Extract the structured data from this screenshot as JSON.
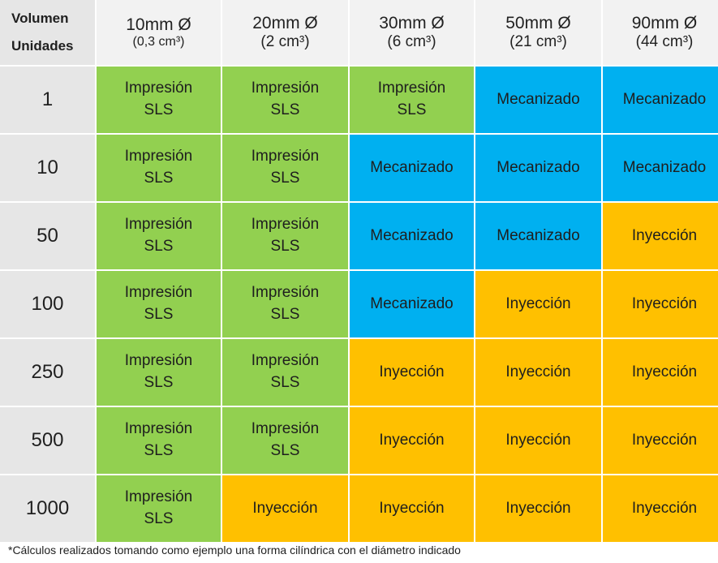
{
  "header": {
    "corner_line1": "Volumen",
    "corner_line2": "Unidades",
    "columns": [
      {
        "size": "10mm Ø",
        "volume": "(0,3 cm³)"
      },
      {
        "size": "20mm Ø",
        "volume": "(2 cm³)"
      },
      {
        "size": "30mm Ø",
        "volume": "(6 cm³)"
      },
      {
        "size": "50mm Ø",
        "volume": "(21 cm³)"
      },
      {
        "size": "90mm Ø",
        "volume": "(44 cm³)"
      }
    ]
  },
  "rows": [
    {
      "units": "1",
      "cells": [
        "sls",
        "sls",
        "sls",
        "mec",
        "mec"
      ]
    },
    {
      "units": "10",
      "cells": [
        "sls",
        "sls",
        "mec",
        "mec",
        "mec"
      ]
    },
    {
      "units": "50",
      "cells": [
        "sls",
        "sls",
        "mec",
        "mec",
        "iny"
      ]
    },
    {
      "units": "100",
      "cells": [
        "sls",
        "sls",
        "mec",
        "iny",
        "iny"
      ]
    },
    {
      "units": "250",
      "cells": [
        "sls",
        "sls",
        "iny",
        "iny",
        "iny"
      ]
    },
    {
      "units": "500",
      "cells": [
        "sls",
        "sls",
        "iny",
        "iny",
        "iny"
      ]
    },
    {
      "units": "1000",
      "cells": [
        "sls",
        "iny",
        "iny",
        "iny",
        "iny"
      ]
    }
  ],
  "methods": {
    "sls": {
      "line1": "Impresión",
      "line2": "SLS",
      "color": "#92d050"
    },
    "mec": {
      "line1": "Mecanizado",
      "line2": "",
      "color": "#00b0f0"
    },
    "iny": {
      "line1": "Inyección",
      "line2": "",
      "color": "#ffc000"
    }
  },
  "footnote": "*Cálculos realizados tomando como ejemplo una forma cilíndrica con el diámetro indicado"
}
